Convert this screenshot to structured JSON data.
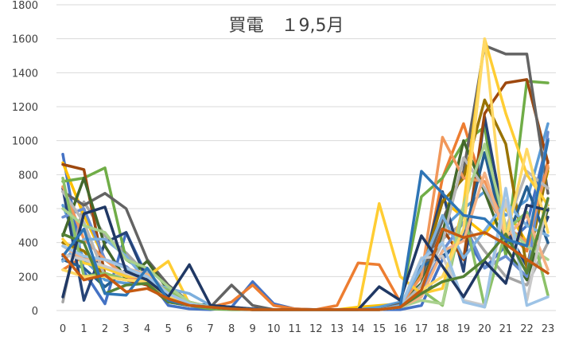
{
  "chart_data": {
    "type": "line",
    "title": "買電　１9,5月",
    "xlabel": "",
    "ylabel": "",
    "ylim": [
      0,
      1800
    ],
    "yticks": [
      0,
      200,
      400,
      600,
      800,
      1000,
      1200,
      1400,
      1600,
      1800
    ],
    "grid": "horizontal",
    "legend": "none",
    "x": [
      0,
      1,
      2,
      3,
      4,
      5,
      6,
      7,
      8,
      9,
      10,
      11,
      12,
      13,
      14,
      15,
      16,
      17,
      18,
      19,
      20,
      21,
      22,
      23
    ],
    "series": [
      {
        "color": "#4472C4",
        "values": [
          920,
          230,
          40,
          460,
          200,
          30,
          10,
          5,
          20,
          170,
          40,
          10,
          5,
          5,
          5,
          5,
          5,
          30,
          300,
          450,
          250,
          380,
          500,
          1010
        ]
      },
      {
        "color": "#ED7D31",
        "values": [
          240,
          320,
          260,
          200,
          180,
          60,
          30,
          20,
          50,
          150,
          30,
          10,
          5,
          30,
          280,
          270,
          50,
          150,
          780,
          1100,
          700,
          480,
          350,
          880
        ]
      },
      {
        "color": "#A5A5A5",
        "values": [
          50,
          640,
          440,
          340,
          210,
          100,
          40,
          20,
          20,
          10,
          5,
          5,
          5,
          5,
          5,
          5,
          30,
          250,
          420,
          520,
          350,
          200,
          150,
          400
        ]
      },
      {
        "color": "#FFC000",
        "values": [
          870,
          560,
          300,
          250,
          200,
          110,
          50,
          20,
          10,
          5,
          5,
          5,
          5,
          5,
          20,
          30,
          40,
          200,
          650,
          550,
          450,
          600,
          400,
          820
        ]
      },
      {
        "color": "#5B9BD5",
        "values": [
          620,
          300,
          180,
          160,
          160,
          90,
          40,
          20,
          20,
          5,
          5,
          5,
          5,
          5,
          5,
          20,
          50,
          160,
          480,
          600,
          700,
          560,
          650,
          1100
        ]
      },
      {
        "color": "#70AD47",
        "values": [
          760,
          780,
          840,
          300,
          220,
          100,
          30,
          10,
          5,
          5,
          5,
          5,
          5,
          5,
          5,
          5,
          30,
          670,
          780,
          990,
          1080,
          320,
          1350,
          1340
        ]
      },
      {
        "color": "#264478",
        "values": [
          720,
          60,
          400,
          460,
          180,
          90,
          40,
          30,
          20,
          10,
          5,
          5,
          5,
          5,
          5,
          5,
          20,
          220,
          700,
          230,
          1140,
          480,
          260,
          550
        ]
      },
      {
        "color": "#9E480E",
        "values": [
          860,
          830,
          210,
          180,
          150,
          50,
          30,
          20,
          10,
          5,
          5,
          5,
          5,
          5,
          5,
          5,
          20,
          150,
          480,
          300,
          1160,
          1340,
          1360,
          870
        ]
      },
      {
        "color": "#636363",
        "values": [
          700,
          620,
          690,
          600,
          300,
          150,
          50,
          20,
          150,
          30,
          5,
          5,
          5,
          5,
          5,
          5,
          40,
          200,
          530,
          820,
          1560,
          1510,
          1510,
          690
        ]
      },
      {
        "color": "#997300",
        "values": [
          400,
          350,
          200,
          180,
          170,
          120,
          40,
          20,
          20,
          5,
          5,
          5,
          5,
          5,
          5,
          5,
          30,
          230,
          640,
          780,
          1240,
          980,
          250,
          840
        ]
      },
      {
        "color": "#255E91",
        "values": [
          300,
          250,
          140,
          240,
          200,
          110,
          40,
          30,
          20,
          5,
          5,
          5,
          5,
          5,
          5,
          5,
          30,
          260,
          320,
          420,
          930,
          400,
          730,
          400
        ]
      },
      {
        "color": "#43682B",
        "values": [
          440,
          780,
          380,
          180,
          290,
          120,
          40,
          20,
          10,
          5,
          5,
          5,
          5,
          5,
          5,
          5,
          30,
          160,
          450,
          1000,
          700,
          370,
          180,
          600
        ]
      },
      {
        "color": "#698ED0",
        "values": [
          550,
          600,
          300,
          260,
          160,
          80,
          30,
          20,
          10,
          5,
          5,
          5,
          5,
          5,
          5,
          5,
          20,
          120,
          350,
          520,
          250,
          320,
          200,
          1050
        ]
      },
      {
        "color": "#F1975A",
        "values": [
          730,
          420,
          300,
          200,
          160,
          80,
          40,
          20,
          20,
          5,
          5,
          5,
          5,
          5,
          5,
          5,
          30,
          200,
          1020,
          780,
          760,
          500,
          400,
          850
        ]
      },
      {
        "color": "#B7B7B7",
        "values": [
          700,
          520,
          200,
          210,
          230,
          100,
          40,
          20,
          10,
          5,
          5,
          5,
          5,
          5,
          5,
          5,
          20,
          150,
          400,
          900,
          720,
          480,
          820,
          720
        ]
      },
      {
        "color": "#FFCD33",
        "values": [
          420,
          280,
          250,
          200,
          200,
          290,
          40,
          20,
          10,
          5,
          5,
          5,
          5,
          5,
          5,
          630,
          200,
          100,
          130,
          620,
          1600,
          1160,
          800,
          620
        ]
      },
      {
        "color": "#7CAFDD",
        "values": [
          290,
          420,
          420,
          320,
          170,
          130,
          100,
          30,
          10,
          5,
          5,
          5,
          5,
          5,
          5,
          5,
          30,
          250,
          560,
          310,
          470,
          640,
          500,
          440
        ]
      },
      {
        "color": "#8CC168",
        "values": [
          780,
          200,
          220,
          180,
          170,
          120,
          40,
          20,
          10,
          5,
          5,
          5,
          5,
          5,
          5,
          5,
          20,
          120,
          30,
          590,
          20,
          470,
          580,
          90
        ]
      },
      {
        "color": "#A9D18E",
        "values": [
          600,
          500,
          460,
          300,
          250,
          140,
          50,
          20,
          10,
          5,
          5,
          5,
          5,
          5,
          5,
          5,
          20,
          60,
          40,
          620,
          980,
          500,
          380,
          300
        ]
      },
      {
        "color": "#F4B183",
        "values": [
          380,
          300,
          300,
          250,
          210,
          100,
          40,
          20,
          10,
          5,
          5,
          5,
          5,
          5,
          5,
          5,
          20,
          80,
          350,
          410,
          810,
          430,
          560,
          240
        ]
      },
      {
        "color": "#C9C9C9",
        "values": [
          330,
          300,
          260,
          220,
          180,
          90,
          40,
          20,
          10,
          5,
          5,
          5,
          5,
          5,
          5,
          5,
          20,
          310,
          320,
          60,
          30,
          650,
          60,
          650
        ]
      },
      {
        "color": "#FFD966",
        "values": [
          240,
          200,
          200,
          180,
          170,
          80,
          40,
          20,
          10,
          5,
          5,
          5,
          5,
          5,
          5,
          5,
          20,
          120,
          200,
          480,
          1600,
          420,
          950,
          460
        ]
      },
      {
        "color": "#9DC3E6",
        "values": [
          380,
          320,
          300,
          250,
          200,
          100,
          40,
          20,
          10,
          5,
          5,
          5,
          5,
          5,
          5,
          5,
          20,
          300,
          400,
          50,
          20,
          720,
          30,
          80
        ]
      },
      {
        "color": "#203864",
        "values": [
          80,
          570,
          610,
          230,
          180,
          80,
          270,
          30,
          20,
          5,
          5,
          5,
          5,
          5,
          5,
          140,
          60,
          440,
          260,
          80,
          290,
          160,
          620,
          590
        ]
      },
      {
        "color": "#548235",
        "values": [
          450,
          400,
          100,
          150,
          160,
          50,
          30,
          20,
          10,
          5,
          5,
          5,
          5,
          5,
          5,
          5,
          20,
          100,
          170,
          200,
          300,
          450,
          220,
          660
        ]
      },
      {
        "color": "#2E75B6",
        "values": [
          320,
          480,
          100,
          90,
          250,
          60,
          30,
          20,
          10,
          5,
          5,
          5,
          5,
          5,
          5,
          5,
          20,
          820,
          690,
          560,
          540,
          420,
          380,
          1000
        ]
      },
      {
        "color": "#C55A11",
        "values": [
          330,
          180,
          210,
          110,
          130,
          70,
          30,
          20,
          10,
          5,
          5,
          5,
          5,
          5,
          5,
          5,
          20,
          120,
          480,
          430,
          460,
          390,
          300,
          220
        ]
      }
    ]
  }
}
